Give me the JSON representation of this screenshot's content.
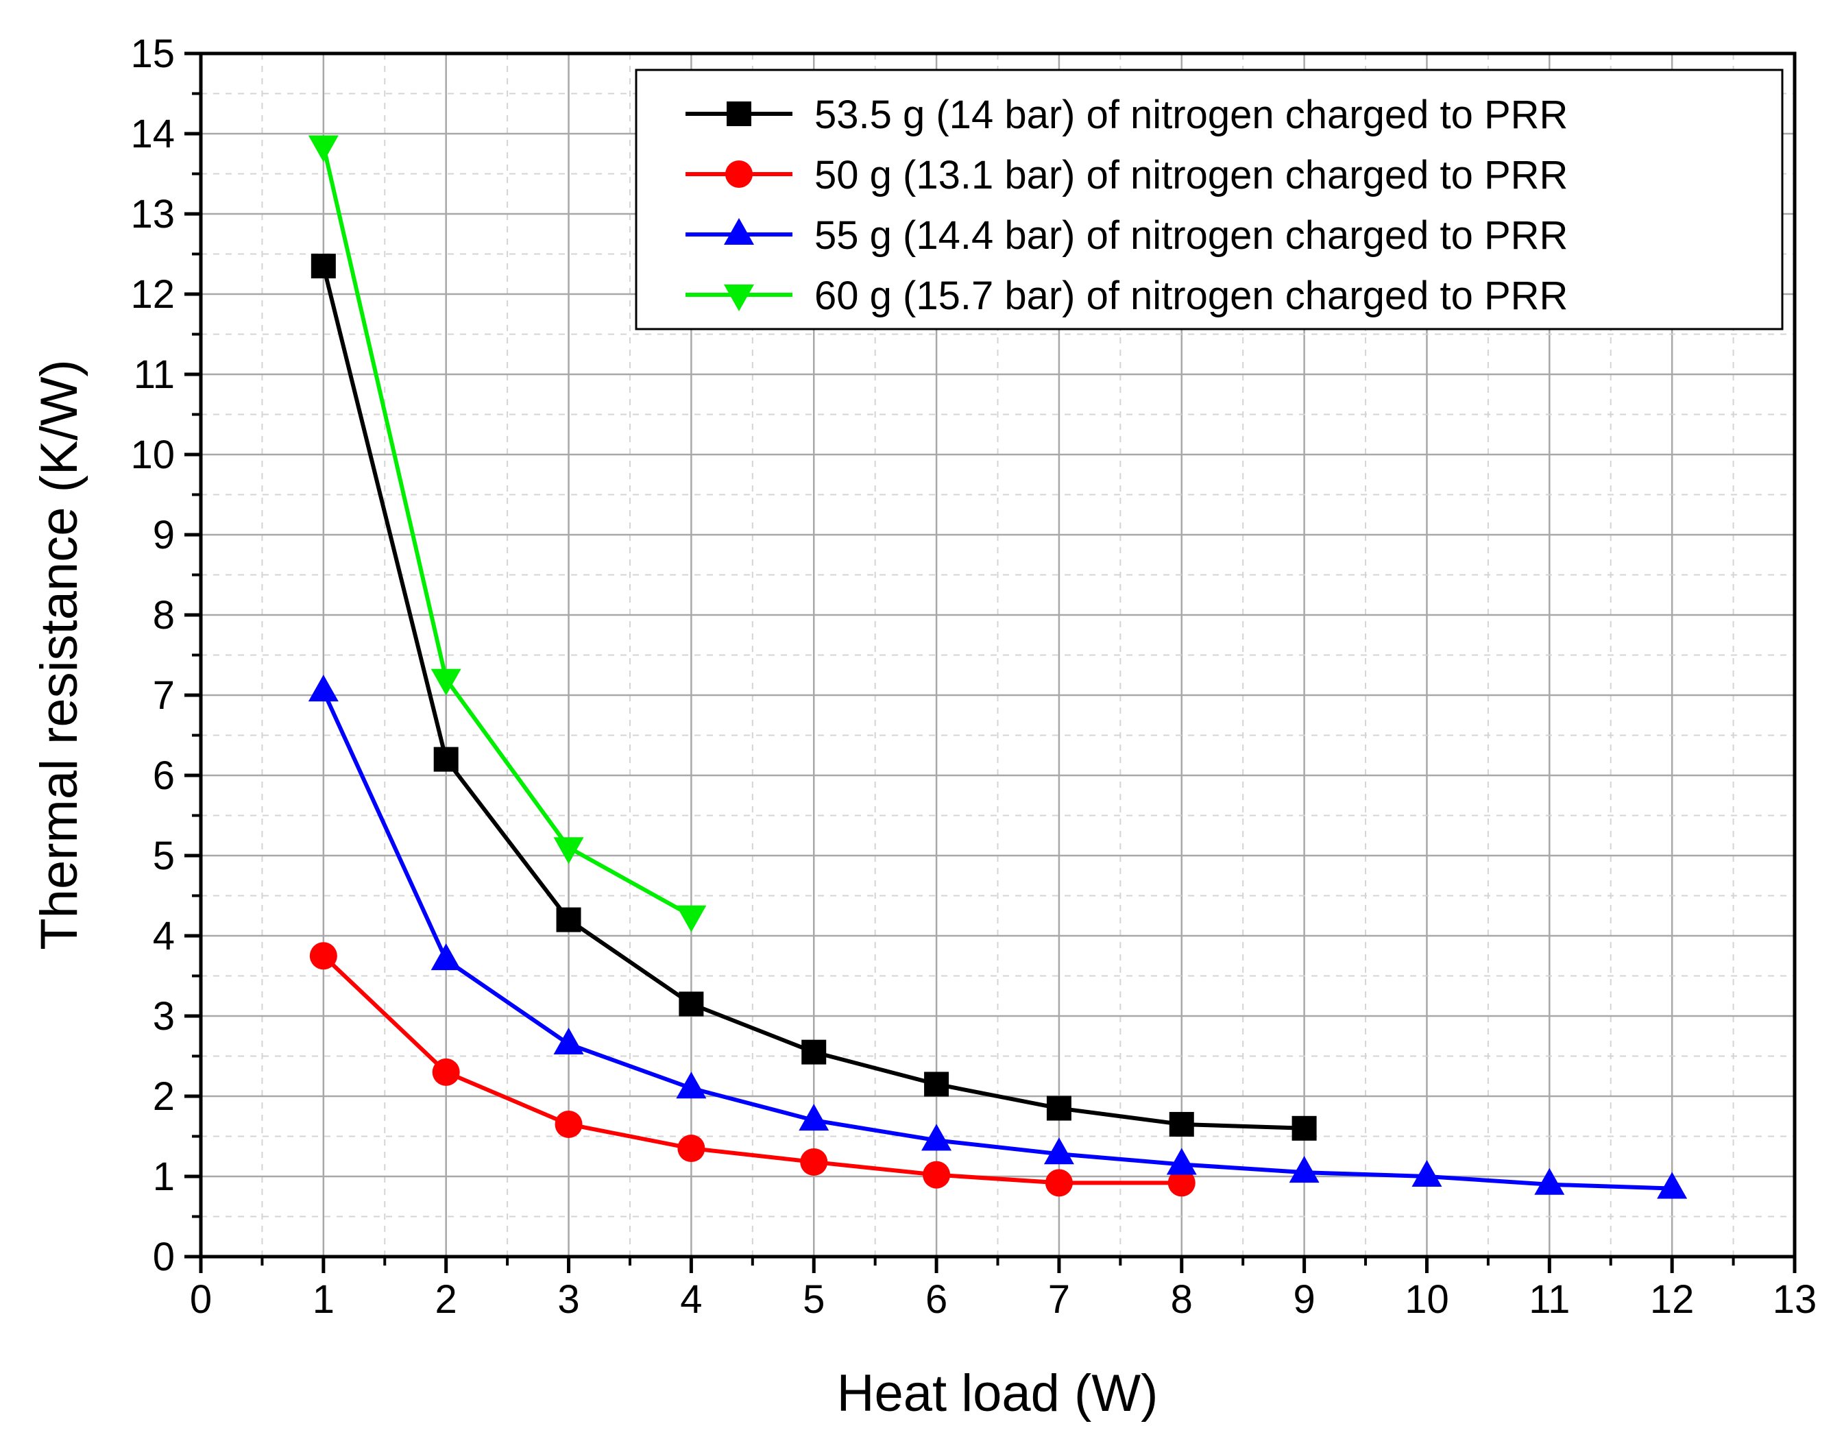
{
  "chart_data": {
    "type": "line",
    "title": "",
    "xlabel": "Heat load (W)",
    "ylabel": "Thermal resistance (K/W)",
    "xlim": [
      0,
      13
    ],
    "ylim": [
      0,
      15
    ],
    "xticks": [
      "0",
      "1",
      "2",
      "3",
      "4",
      "5",
      "6",
      "7",
      "8",
      "9",
      "10",
      "11",
      "12",
      "13"
    ],
    "yticks": [
      "0",
      "1",
      "2",
      "3",
      "4",
      "5",
      "6",
      "7",
      "8",
      "9",
      "10",
      "11",
      "12",
      "13",
      "14",
      "15"
    ],
    "grid": true,
    "legend_position": "top-right",
    "series": [
      {
        "name": "53.5 g (14 bar) of nitrogen charged to PRR",
        "color": "#000000",
        "marker": "square",
        "x": [
          1,
          2,
          3,
          4,
          5,
          6,
          7,
          8,
          9
        ],
        "y": [
          12.35,
          6.2,
          4.2,
          3.15,
          2.55,
          2.15,
          1.85,
          1.65,
          1.6
        ]
      },
      {
        "name": "50 g (13.1 bar) of nitrogen charged to PRR",
        "color": "#ff0000",
        "marker": "circle",
        "x": [
          1,
          2,
          3,
          4,
          5,
          6,
          7,
          8
        ],
        "y": [
          3.75,
          2.3,
          1.65,
          1.35,
          1.18,
          1.02,
          0.92,
          0.92
        ]
      },
      {
        "name": "55 g (14.4 bar) of nitrogen charged to PRR",
        "color": "#0000ff",
        "marker": "triangle-up",
        "x": [
          1,
          2,
          3,
          4,
          5,
          6,
          7,
          8,
          9,
          10,
          11,
          12
        ],
        "y": [
          7.05,
          3.7,
          2.65,
          2.1,
          1.7,
          1.45,
          1.28,
          1.15,
          1.05,
          1.0,
          0.9,
          0.85
        ]
      },
      {
        "name": "60 g (15.7 bar) of nitrogen charged to PRR",
        "color": "#00ee00",
        "marker": "triangle-down",
        "x": [
          1,
          2,
          3,
          4
        ],
        "y": [
          13.85,
          7.2,
          5.1,
          4.25
        ]
      }
    ]
  }
}
